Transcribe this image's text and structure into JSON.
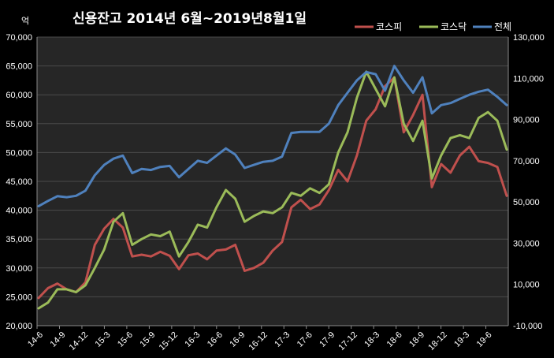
{
  "chart_data": {
    "type": "line",
    "title": "신용잔고 2014년 6월~2019년8월1일",
    "unit_label": "억",
    "x_labels": [
      "14-6",
      "14-9",
      "14-12",
      "15-3",
      "15-6",
      "15-9",
      "15-12",
      "16-3",
      "16-6",
      "16-9",
      "16-12",
      "17-3",
      "17-6",
      "17-9",
      "17-12",
      "18-3",
      "18-6",
      "18-9",
      "18-12",
      "19-3",
      "19-6"
    ],
    "y_left": {
      "ticks": [
        "20,000",
        "25,000",
        "30,000",
        "35,000",
        "40,000",
        "45,000",
        "50,000",
        "55,000",
        "60,000",
        "65,000",
        "70,000"
      ],
      "range": [
        20000,
        70000
      ]
    },
    "y_right": {
      "ticks": [
        "-10,000",
        "10,000",
        "30,000",
        "50,000",
        "70,000",
        "90,000",
        "110,000",
        "130,000"
      ],
      "range": [
        -10000,
        130000
      ]
    },
    "grid": true,
    "legend_position": "top-right",
    "series": [
      {
        "name": "코스피",
        "axis": "left",
        "color": "#c0504d",
        "values": [
          24800,
          26500,
          27300,
          26300,
          25800,
          27500,
          34000,
          36800,
          38500,
          37000,
          32000,
          32300,
          32000,
          32800,
          32100,
          29800,
          32200,
          32500,
          31500,
          33000,
          33200,
          34000,
          29500,
          30000,
          30900,
          33000,
          34500,
          40500,
          41800,
          40200,
          41000,
          43500,
          47000,
          45000,
          49500,
          55500,
          57500,
          61500,
          63000,
          53500,
          56500,
          60000,
          44000,
          48000,
          46500,
          49500,
          51000,
          48500,
          48200,
          47500,
          42500
        ]
      },
      {
        "name": "코스닥",
        "axis": "left",
        "color": "#9bbb59",
        "values": [
          23000,
          24000,
          26300,
          26300,
          25800,
          27000,
          30000,
          33200,
          38000,
          39500,
          34000,
          35000,
          35800,
          35500,
          36300,
          32000,
          34500,
          37500,
          37000,
          40500,
          43500,
          42000,
          38000,
          39000,
          39800,
          39500,
          40500,
          43000,
          42500,
          43800,
          43000,
          44500,
          50000,
          53500,
          59500,
          64000,
          61000,
          58000,
          63000,
          55000,
          52000,
          55500,
          45500,
          49500,
          52500,
          53000,
          52500,
          56000,
          57000,
          55500,
          50500
        ]
      },
      {
        "name": "전체",
        "axis": "right",
        "color": "#4f81bd",
        "values": [
          48000,
          50500,
          52800,
          52300,
          53000,
          55500,
          63000,
          68000,
          71000,
          72500,
          64000,
          66000,
          65500,
          67000,
          67500,
          62000,
          66000,
          70000,
          69000,
          72500,
          76000,
          73000,
          66500,
          68000,
          69500,
          70000,
          72000,
          83500,
          84000,
          84000,
          84000,
          88000,
          97000,
          103000,
          109000,
          113000,
          112000,
          104000,
          116000,
          109000,
          103000,
          110500,
          93000,
          97000,
          98000,
          100000,
          102000,
          103500,
          104500,
          101000,
          97000
        ]
      }
    ]
  }
}
